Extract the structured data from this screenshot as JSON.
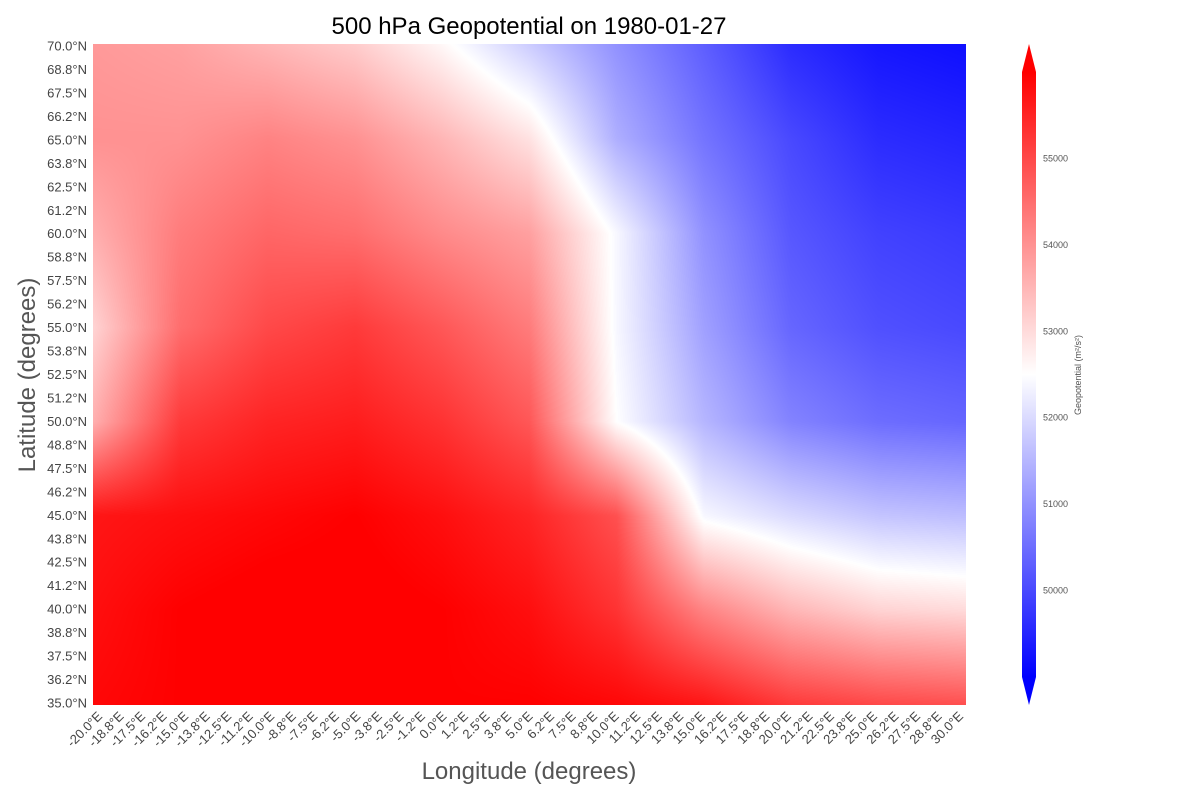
{
  "chart_data": {
    "type": "heatmap",
    "title": "500 hPa Geopotential on 1980-01-27",
    "xlabel": "Longitude (degrees)",
    "ylabel": "Latitude (degrees)",
    "x_tick_labels": [
      "-20.0°E",
      "-18.8°E",
      "-17.5°E",
      "-16.2°E",
      "-15.0°E",
      "-13.8°E",
      "-12.5°E",
      "-11.2°E",
      "-10.0°E",
      "-8.8°E",
      "-7.5°E",
      "-6.2°E",
      "-5.0°E",
      "-3.8°E",
      "-2.5°E",
      "-1.2°E",
      "0.0°E",
      "1.2°E",
      "2.5°E",
      "3.8°E",
      "5.0°E",
      "6.2°E",
      "7.5°E",
      "8.8°E",
      "10.0°E",
      "11.2°E",
      "12.5°E",
      "13.8°E",
      "15.0°E",
      "16.2°E",
      "17.5°E",
      "18.8°E",
      "20.0°E",
      "21.2°E",
      "22.5°E",
      "23.8°E",
      "25.0°E",
      "26.2°E",
      "27.5°E",
      "28.8°E",
      "30.0°E"
    ],
    "y_tick_labels": [
      "70.0°N",
      "68.8°N",
      "67.5°N",
      "66.2°N",
      "65.0°N",
      "63.8°N",
      "62.5°N",
      "61.2°N",
      "60.0°N",
      "58.8°N",
      "57.5°N",
      "56.2°N",
      "55.0°N",
      "53.8°N",
      "52.5°N",
      "51.2°N",
      "50.0°N",
      "48.8°N",
      "47.5°N",
      "46.2°N",
      "45.0°N",
      "43.8°N",
      "42.5°N",
      "41.2°N",
      "40.0°N",
      "38.8°N",
      "37.5°N",
      "36.2°N",
      "35.0°N"
    ],
    "x_range": [
      -20.0,
      30.0
    ],
    "y_range": [
      35.0,
      70.0
    ],
    "colorbar": {
      "label": "Geopotential (m²/s²)",
      "ticks": [
        50000,
        51000,
        52000,
        53000,
        54000,
        55000
      ],
      "range": [
        49000,
        56000
      ],
      "center": 52500,
      "extend": "both",
      "colormap": "bwr",
      "low_color": "#0000ff",
      "mid_color": "#ffffff",
      "high_color": "#ff0000"
    },
    "grid": false,
    "field_samples": {
      "description_of_columns": "lon",
      "lon": [
        -20,
        -15,
        -10,
        -5,
        0,
        5,
        10,
        15,
        20,
        25,
        30
      ],
      "lat": [
        70,
        65,
        60,
        55,
        50,
        45,
        40,
        35
      ],
      "values": [
        [
          53900,
          53800,
          53500,
          53200,
          52600,
          51800,
          51000,
          50300,
          49600,
          49300,
          49200
        ],
        [
          54000,
          54000,
          54200,
          54000,
          53500,
          52900,
          51400,
          50600,
          50000,
          49600,
          49500
        ],
        [
          53600,
          54300,
          54600,
          54500,
          54100,
          53800,
          52400,
          51000,
          50200,
          49900,
          49800
        ],
        [
          53100,
          54500,
          55000,
          55200,
          54800,
          54300,
          52400,
          51200,
          50400,
          50100,
          50000
        ],
        [
          53600,
          55200,
          55500,
          55600,
          55300,
          54800,
          52500,
          51500,
          50800,
          50500,
          50400
        ],
        [
          55700,
          55800,
          55900,
          56000,
          55800,
          55500,
          54900,
          52400,
          52000,
          51700,
          51600
        ],
        [
          55800,
          56000,
          56100,
          56100,
          56000,
          55800,
          55300,
          54200,
          53500,
          53100,
          53000
        ],
        [
          55900,
          56000,
          56000,
          56000,
          56000,
          56000,
          55900,
          55700,
          55200,
          55000,
          54900
        ]
      ]
    }
  }
}
